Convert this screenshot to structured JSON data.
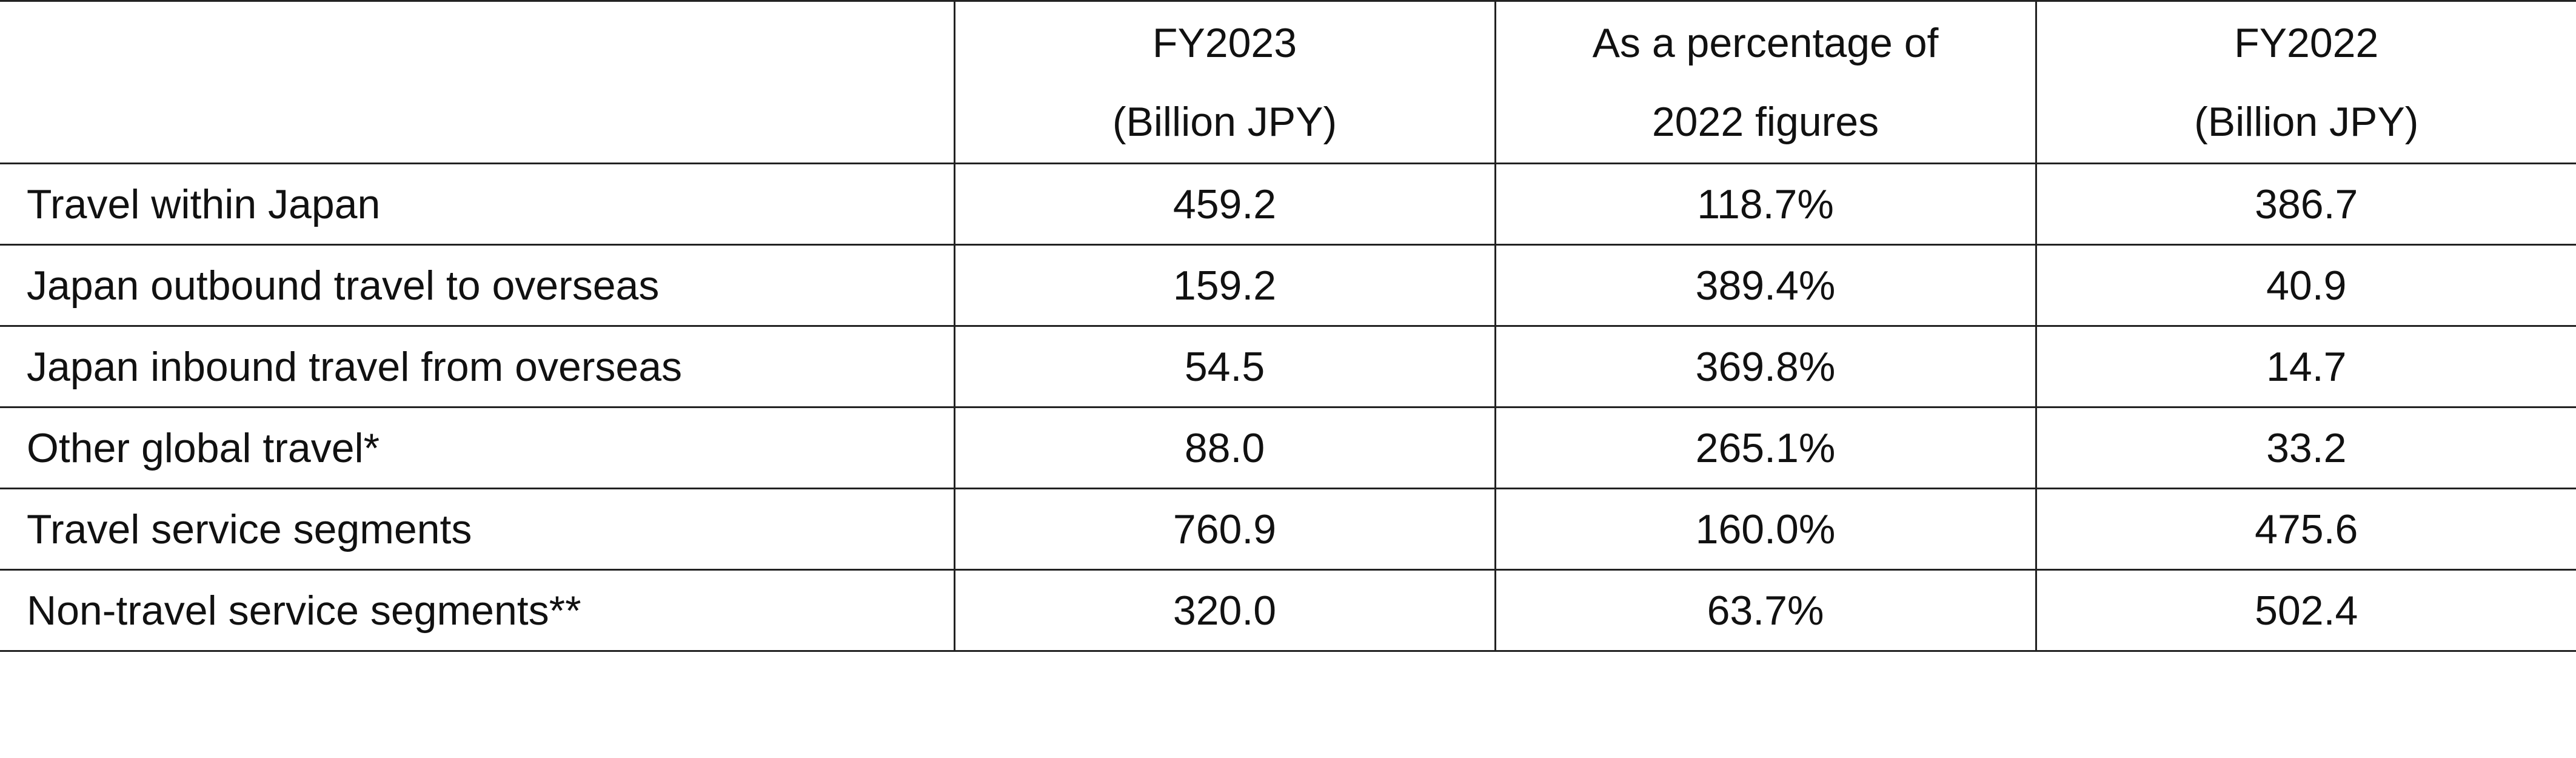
{
  "table": {
    "columns": [
      [
        "FY2023",
        "(Billion JPY)"
      ],
      [
        "As a percentage of",
        "2022 figures"
      ],
      [
        "FY2022",
        "(Billion JPY)"
      ]
    ],
    "rows": [
      [
        "Travel within Japan",
        "459.2",
        "118.7%",
        "386.7"
      ],
      [
        "Japan outbound travel to overseas",
        "159.2",
        "389.4%",
        "40.9"
      ],
      [
        "Japan inbound travel from overseas",
        "54.5",
        "369.8%",
        "14.7"
      ],
      [
        "Other global travel*",
        "88.0",
        "265.1%",
        "33.2"
      ],
      [
        "Travel service segments",
        "760.9",
        "160.0%",
        "475.6"
      ],
      [
        "Non-travel service segments**",
        "320.0",
        "63.7%",
        "502.4"
      ]
    ]
  }
}
